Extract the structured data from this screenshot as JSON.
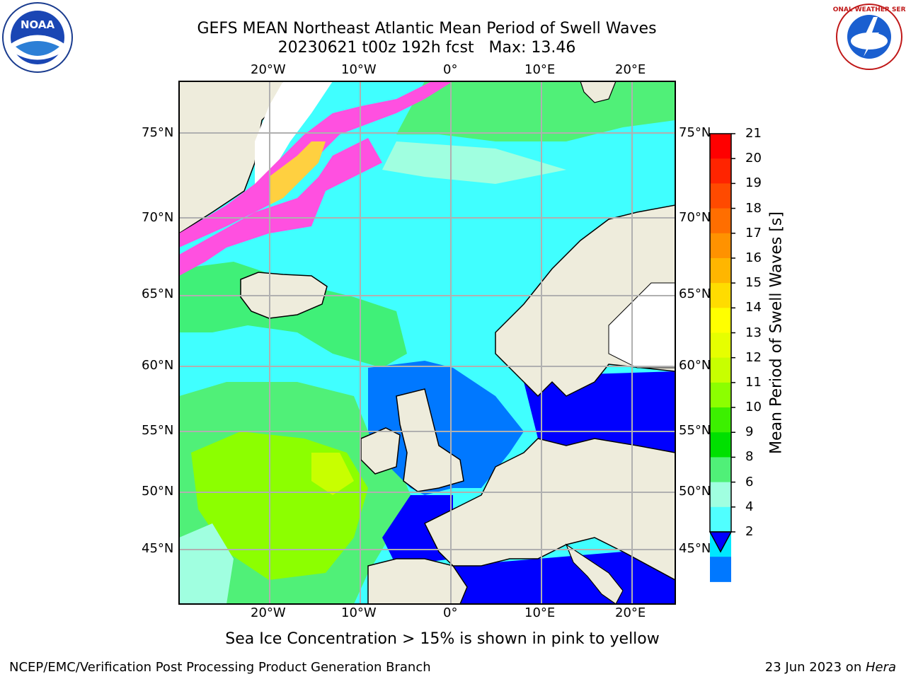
{
  "header": {
    "title_line1": "GEFS MEAN Northeast Atlantic Mean Period of Swell Waves",
    "title_line2": "20230621 t00z 192h fcst   Max: 13.46"
  },
  "logos": {
    "left": "NOAA",
    "right": "NATIONAL WEATHER SERVICE"
  },
  "axes": {
    "top_lon_labels": [
      "20°W",
      "10°W",
      "0°",
      "10°E",
      "20°E"
    ],
    "bottom_lon_labels": [
      "20°W",
      "10°W",
      "0°",
      "10°E",
      "20°E"
    ],
    "left_lat_labels": [
      "75°N",
      "70°N",
      "65°N",
      "60°N",
      "55°N",
      "50°N",
      "45°N"
    ],
    "right_lat_labels": [
      "75°N",
      "70°N",
      "65°N",
      "60°N",
      "55°N",
      "50°N",
      "45°N"
    ]
  },
  "colorbar": {
    "label": "Mean Period of Swell Waves [s]",
    "ticks": [
      "21",
      "20",
      "19",
      "18",
      "17",
      "16",
      "15",
      "14",
      "13",
      "12",
      "11",
      "10",
      "9",
      "8",
      "6",
      "4",
      "2"
    ],
    "colors": [
      "#ff0000",
      "#ff2400",
      "#ff4a00",
      "#ff6e00",
      "#ff9200",
      "#ffb600",
      "#ffdc00",
      "#ffff00",
      "#e6ff00",
      "#c8ff00",
      "#8cff00",
      "#3cf000",
      "#00e000",
      "#50f078",
      "#a0ffe0",
      "#50ffff",
      "#00e8ff",
      "#0078ff"
    ],
    "under_color": "#0000ff"
  },
  "colors": {
    "land": "#eeecdc",
    "ice_pink": "#ff50e0",
    "ice_yellow": "#ffd040",
    "ocean_cyan": "#40ffff",
    "ocean_green": "#40e860",
    "grid": "#b0b0b0"
  },
  "caption": "Sea Ice Concentration > 15% is shown in pink to yellow",
  "footer": {
    "left": "NCEP/EMC/Verification Post Processing Product Generation Branch",
    "right_prefix": "23 Jun 2023 on ",
    "right_host": "Hera"
  }
}
